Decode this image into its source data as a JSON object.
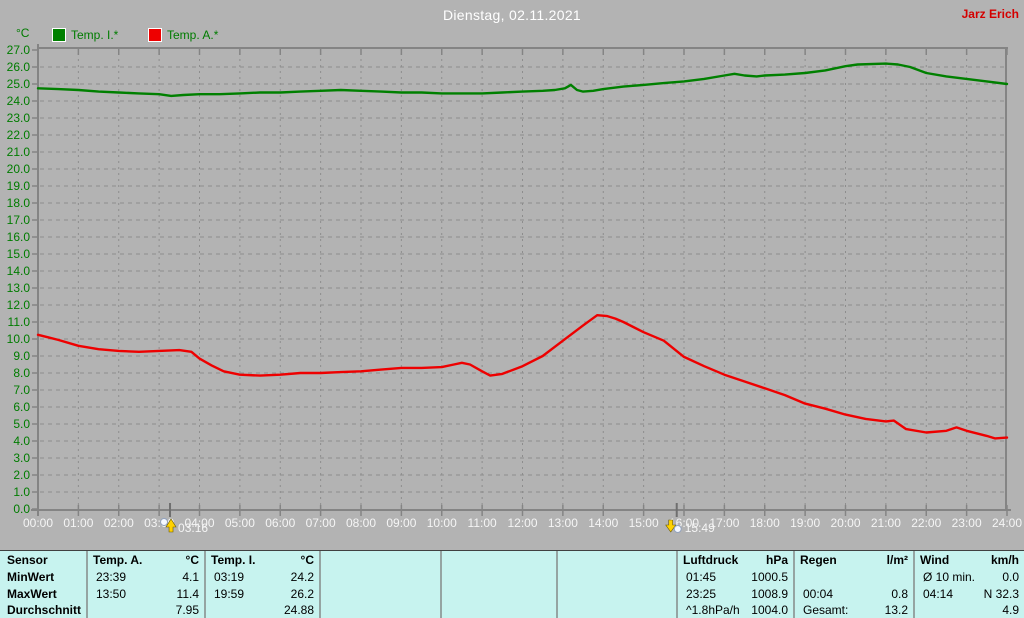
{
  "header": {
    "title": "Dienstag, 02.11.2021",
    "user": "Jarz Erich",
    "user_color": "#d40000"
  },
  "chart_data": {
    "type": "line",
    "title": "Dienstag, 02.11.2021",
    "unit_label": "°C",
    "ylim": [
      0,
      27
    ],
    "ytick_step": 1.0,
    "xlim_hours": [
      0,
      24
    ],
    "xtick_labels": [
      "00:00",
      "01:00",
      "02:00",
      "03:00",
      "04:00",
      "05:00",
      "06:00",
      "07:00",
      "08:00",
      "09:00",
      "10:00",
      "11:00",
      "12:00",
      "13:00",
      "14:00",
      "15:00",
      "16:00",
      "17:00",
      "18:00",
      "19:00",
      "20:00",
      "21:00",
      "22:00",
      "23:00",
      "24:00"
    ],
    "grid": true,
    "legend_position": "top-left",
    "colors": {
      "background": "#b3b3b3",
      "grid": "#8d8d8d",
      "axis": "#848484",
      "x_label": "#f5f5f5",
      "y_label": "#007c00",
      "marker_arrow": "#ffd200"
    },
    "series": [
      {
        "name": "Temp. I.*",
        "color": "#008000",
        "points": [
          [
            0,
            24.75
          ],
          [
            0.5,
            24.7
          ],
          [
            1,
            24.65
          ],
          [
            1.5,
            24.55
          ],
          [
            2,
            24.5
          ],
          [
            2.5,
            24.45
          ],
          [
            3,
            24.4
          ],
          [
            3.3,
            24.3
          ],
          [
            3.6,
            24.35
          ],
          [
            4,
            24.4
          ],
          [
            4.5,
            24.4
          ],
          [
            5,
            24.45
          ],
          [
            5.5,
            24.5
          ],
          [
            6,
            24.5
          ],
          [
            6.5,
            24.55
          ],
          [
            7,
            24.6
          ],
          [
            7.5,
            24.65
          ],
          [
            8,
            24.6
          ],
          [
            8.5,
            24.55
          ],
          [
            9,
            24.5
          ],
          [
            9.5,
            24.5
          ],
          [
            10,
            24.45
          ],
          [
            10.5,
            24.45
          ],
          [
            11,
            24.45
          ],
          [
            11.5,
            24.5
          ],
          [
            12,
            24.55
          ],
          [
            12.5,
            24.6
          ],
          [
            12.8,
            24.65
          ],
          [
            13.05,
            24.75
          ],
          [
            13.2,
            24.95
          ],
          [
            13.35,
            24.65
          ],
          [
            13.5,
            24.55
          ],
          [
            13.75,
            24.6
          ],
          [
            14,
            24.7
          ],
          [
            14.5,
            24.85
          ],
          [
            15,
            24.95
          ],
          [
            15.5,
            25.05
          ],
          [
            16,
            25.15
          ],
          [
            16.5,
            25.3
          ],
          [
            17,
            25.5
          ],
          [
            17.25,
            25.6
          ],
          [
            17.5,
            25.5
          ],
          [
            17.8,
            25.45
          ],
          [
            18,
            25.5
          ],
          [
            18.5,
            25.55
          ],
          [
            19,
            25.65
          ],
          [
            19.5,
            25.8
          ],
          [
            20,
            26.05
          ],
          [
            20.3,
            26.15
          ],
          [
            21,
            26.2
          ],
          [
            21.3,
            26.15
          ],
          [
            21.6,
            26.0
          ],
          [
            22,
            25.65
          ],
          [
            22.5,
            25.45
          ],
          [
            23,
            25.3
          ],
          [
            23.5,
            25.15
          ],
          [
            24,
            25.0
          ]
        ]
      },
      {
        "name": "Temp. A.*",
        "color": "#ee0000",
        "points": [
          [
            0,
            10.25
          ],
          [
            0.25,
            10.1
          ],
          [
            0.5,
            9.95
          ],
          [
            1,
            9.6
          ],
          [
            1.5,
            9.4
          ],
          [
            2,
            9.3
          ],
          [
            2.5,
            9.25
          ],
          [
            3,
            9.3
          ],
          [
            3.5,
            9.35
          ],
          [
            3.8,
            9.25
          ],
          [
            4,
            8.85
          ],
          [
            4.3,
            8.45
          ],
          [
            4.6,
            8.1
          ],
          [
            5,
            7.9
          ],
          [
            5.5,
            7.85
          ],
          [
            6,
            7.9
          ],
          [
            6.5,
            8.0
          ],
          [
            7,
            8.0
          ],
          [
            7.5,
            8.05
          ],
          [
            8,
            8.1
          ],
          [
            8.5,
            8.2
          ],
          [
            9,
            8.3
          ],
          [
            9.5,
            8.3
          ],
          [
            10,
            8.35
          ],
          [
            10.3,
            8.5
          ],
          [
            10.5,
            8.6
          ],
          [
            10.7,
            8.5
          ],
          [
            11,
            8.1
          ],
          [
            11.2,
            7.85
          ],
          [
            11.5,
            7.95
          ],
          [
            12,
            8.4
          ],
          [
            12.5,
            9.0
          ],
          [
            13,
            9.9
          ],
          [
            13.5,
            10.8
          ],
          [
            13.85,
            11.4
          ],
          [
            14.1,
            11.35
          ],
          [
            14.3,
            11.2
          ],
          [
            14.5,
            11.0
          ],
          [
            15,
            10.4
          ],
          [
            15.5,
            9.9
          ],
          [
            16,
            8.95
          ],
          [
            16.5,
            8.4
          ],
          [
            17,
            7.9
          ],
          [
            17.5,
            7.5
          ],
          [
            18,
            7.1
          ],
          [
            18.5,
            6.7
          ],
          [
            19,
            6.2
          ],
          [
            19.5,
            5.9
          ],
          [
            20,
            5.55
          ],
          [
            20.5,
            5.3
          ],
          [
            21,
            5.15
          ],
          [
            21.2,
            5.2
          ],
          [
            21.5,
            4.7
          ],
          [
            22,
            4.5
          ],
          [
            22.5,
            4.6
          ],
          [
            22.75,
            4.8
          ],
          [
            23,
            4.6
          ],
          [
            23.5,
            4.3
          ],
          [
            23.7,
            4.15
          ],
          [
            24,
            4.2
          ]
        ]
      }
    ],
    "markers": [
      {
        "label": "03:16",
        "hours": 3.27,
        "direction": "up"
      },
      {
        "label": "15:49",
        "hours": 15.82,
        "direction": "down"
      }
    ]
  },
  "table": {
    "panel_bg": "#c7f3ef",
    "row_labels": [
      "Sensor",
      "MinWert",
      "MaxWert",
      "Durchschnitt"
    ],
    "columns": [
      {
        "name": "Temp. A.",
        "unit": "°C",
        "rows": [
          [
            "23:39",
            "4.1"
          ],
          [
            "13:50",
            "11.4"
          ],
          [
            "",
            "7.95"
          ]
        ]
      },
      {
        "name": "Temp. I.",
        "unit": "°C",
        "rows": [
          [
            "03:19",
            "24.2"
          ],
          [
            "19:59",
            "26.2"
          ],
          [
            "",
            "24.88"
          ]
        ]
      },
      {
        "name": "",
        "unit": "",
        "rows": [
          [
            "",
            ""
          ],
          [
            "",
            ""
          ],
          [
            "",
            ""
          ]
        ]
      },
      {
        "name": "",
        "unit": "",
        "rows": [
          [
            "",
            ""
          ],
          [
            "",
            ""
          ],
          [
            "",
            ""
          ]
        ]
      },
      {
        "name": "",
        "unit": "",
        "rows": [
          [
            "",
            ""
          ],
          [
            "",
            ""
          ],
          [
            "",
            ""
          ]
        ]
      },
      {
        "name": "Luftdruck",
        "unit": "hPa",
        "rows": [
          [
            "01:45",
            "1000.5"
          ],
          [
            "23:25",
            "1008.9"
          ],
          [
            "^1.8hPa/h",
            "1004.0"
          ]
        ]
      },
      {
        "name": "Regen",
        "unit": "l/m²",
        "rows": [
          [
            "",
            ""
          ],
          [
            "00:04",
            "0.8"
          ],
          [
            "Gesamt:",
            "13.2"
          ]
        ]
      },
      {
        "name": "Wind",
        "unit": "km/h",
        "rows": [
          [
            "Ø 10 min.",
            "0.0"
          ],
          [
            "04:14",
            "N 32.3"
          ],
          [
            "",
            "4.9"
          ]
        ]
      }
    ]
  }
}
